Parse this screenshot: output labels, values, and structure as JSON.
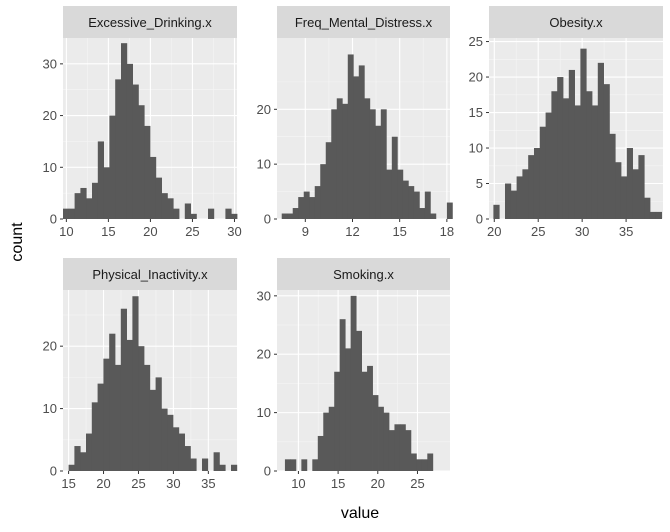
{
  "figure": {
    "xlabel": "value",
    "ylabel": "count"
  },
  "colors": {
    "panel_background": "#EBEBEB",
    "grid_major": "#FFFFFF",
    "grid_minor": "#F5F5F5",
    "strip_background": "#D9D9D9",
    "bar_fill": "#595959",
    "axis_text": "#4D4D4D",
    "axis_title": "#000000",
    "strip_text": "#1A1A1A"
  },
  "chart_data": [
    {
      "type": "bar",
      "title": "Excessive_Drinking.x",
      "xlim": [
        9.6,
        30.3
      ],
      "ylim": [
        0,
        35
      ],
      "xticks": [
        10,
        15,
        20,
        25,
        30
      ],
      "yticks": [
        0,
        10,
        20,
        30
      ],
      "bin_width": 0.69,
      "bins_start": 9.6,
      "counts": [
        2,
        2,
        5,
        6,
        4,
        7,
        15,
        10,
        20,
        27,
        34,
        30,
        26,
        22,
        18,
        12,
        8,
        5,
        4,
        2,
        0,
        3,
        1,
        0,
        0,
        2,
        0,
        0,
        2,
        1
      ]
    },
    {
      "type": "bar",
      "title": "Freq_Mental_Distress.x",
      "xlim": [
        7.2,
        18.2
      ],
      "ylim": [
        0,
        33
      ],
      "xticks": [
        9,
        12,
        15,
        18
      ],
      "yticks": [
        0,
        10,
        20
      ],
      "bin_width": 0.35,
      "bins_start": 7.5,
      "counts": [
        1,
        1,
        2,
        4,
        5,
        4,
        6,
        10,
        14,
        20,
        22,
        21,
        30,
        26,
        28,
        22,
        20,
        17,
        20,
        9,
        15,
        9,
        7,
        6,
        5,
        2,
        5,
        1,
        0,
        0,
        3
      ]
    },
    {
      "type": "bar",
      "title": "Obesity.x",
      "xlim": [
        19.4,
        39.2
      ],
      "ylim": [
        0,
        25.5
      ],
      "xticks": [
        20,
        25,
        30,
        35
      ],
      "yticks": [
        0,
        5,
        10,
        15,
        20,
        25
      ],
      "bin_width": 0.66,
      "bins_start": 19.9,
      "counts": [
        2,
        0,
        5,
        4,
        6,
        7,
        9,
        10,
        13,
        15,
        18,
        20,
        17,
        21,
        16,
        24,
        18,
        16,
        22,
        19,
        12,
        8,
        6,
        10,
        7,
        9,
        3,
        1,
        1
      ]
    },
    {
      "type": "bar",
      "title": "Physical_Inactivity.x",
      "xlim": [
        14.2,
        39.1
      ],
      "ylim": [
        0,
        29
      ],
      "xticks": [
        15,
        20,
        25,
        30,
        35
      ],
      "yticks": [
        0,
        10,
        20
      ],
      "bin_width": 0.83,
      "bins_start": 15.0,
      "counts": [
        1,
        4,
        3,
        6,
        11,
        14,
        18,
        22,
        17,
        26,
        21,
        28,
        20,
        17,
        13,
        15,
        10,
        9,
        7,
        6,
        4,
        2,
        0,
        2,
        0,
        3,
        1,
        0,
        1
      ]
    },
    {
      "type": "bar",
      "title": "Smoking.x",
      "xlim": [
        7.3,
        29.1
      ],
      "ylim": [
        0,
        31
      ],
      "xticks": [
        10,
        15,
        20,
        25
      ],
      "yticks": [
        0,
        10,
        20,
        30
      ],
      "bin_width": 0.69,
      "bins_start": 8.3,
      "counts": [
        2,
        2,
        0,
        2,
        0,
        2,
        6,
        10,
        11,
        17,
        26,
        21,
        30,
        24,
        17,
        18,
        13,
        11,
        10,
        7,
        8,
        8,
        7,
        3,
        2,
        2,
        3
      ]
    }
  ]
}
